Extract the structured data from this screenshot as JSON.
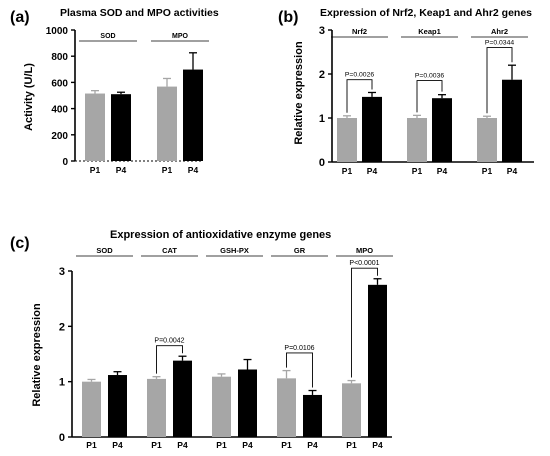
{
  "colors": {
    "p1": "#a6a6a6",
    "p4": "#000000",
    "axis": "#000000"
  },
  "chart_data": [
    {
      "panel_label": "(a)",
      "type": "bar",
      "title": "Plasma SOD and MPO activities",
      "ylabel": "Activity (U/L)",
      "xlabel": "",
      "ylim": [
        0,
        1000
      ],
      "yticks": [
        "0",
        "200",
        "400",
        "600",
        "800",
        "1000"
      ],
      "groups": [
        "SOD",
        "MPO"
      ],
      "categories": [
        "P1",
        "P4"
      ],
      "series": [
        {
          "name": "SOD",
          "values": [
            515,
            510
          ],
          "errors": [
            22,
            15
          ]
        },
        {
          "name": "MPO",
          "values": [
            568,
            698
          ],
          "errors": [
            62,
            128
          ]
        }
      ],
      "annotations": [],
      "baseline_dashed": true,
      "grid": false,
      "legend": "none"
    },
    {
      "panel_label": "(b)",
      "type": "bar",
      "title": "Expression of Nrf2, Keap1 and Ahr2 genes",
      "ylabel": "Relative expression",
      "xlabel": "",
      "ylim": [
        0,
        3
      ],
      "yticks": [
        "0",
        "1",
        "2",
        "3"
      ],
      "groups": [
        "Nrf2",
        "Keap1",
        "Ahr2"
      ],
      "categories": [
        "P1",
        "P4"
      ],
      "series": [
        {
          "name": "Nrf2",
          "values": [
            1.0,
            1.48
          ],
          "errors": [
            0.05,
            0.1
          ]
        },
        {
          "name": "Keap1",
          "values": [
            1.0,
            1.45
          ],
          "errors": [
            0.06,
            0.08
          ]
        },
        {
          "name": "Ahr2",
          "values": [
            1.0,
            1.87
          ],
          "errors": [
            0.04,
            0.33
          ]
        }
      ],
      "annotations": [
        {
          "group": "Nrf2",
          "text": "P=0.0026",
          "y": 1.87
        },
        {
          "group": "Keap1",
          "text": "P=0.0036",
          "y": 1.85
        },
        {
          "group": "Ahr2",
          "text": "P=0.0344",
          "y": 2.6
        }
      ],
      "baseline_dashed": false,
      "grid": false,
      "legend": "none"
    },
    {
      "panel_label": "(c)",
      "type": "bar",
      "title": "Expression of antioxidative enzyme genes",
      "ylabel": "Relative expression",
      "xlabel": "",
      "ylim": [
        0,
        3
      ],
      "yticks": [
        "0",
        "1",
        "2",
        "3"
      ],
      "groups": [
        "SOD",
        "CAT",
        "GSH-PX",
        "GR",
        "MPO"
      ],
      "categories": [
        "P1",
        "P4"
      ],
      "series": [
        {
          "name": "SOD",
          "values": [
            1.0,
            1.12
          ],
          "errors": [
            0.04,
            0.06
          ]
        },
        {
          "name": "CAT",
          "values": [
            1.05,
            1.38
          ],
          "errors": [
            0.04,
            0.08
          ]
        },
        {
          "name": "GSH-PX",
          "values": [
            1.09,
            1.22
          ],
          "errors": [
            0.05,
            0.18
          ]
        },
        {
          "name": "GR",
          "values": [
            1.06,
            0.76
          ],
          "errors": [
            0.14,
            0.08
          ]
        },
        {
          "name": "MPO",
          "values": [
            0.97,
            2.75
          ],
          "errors": [
            0.05,
            0.11
          ]
        }
      ],
      "annotations": [
        {
          "group": "CAT",
          "text": "P=0.0042",
          "y": 1.65
        },
        {
          "group": "GR",
          "text": "P=0.0106",
          "y": 1.52
        },
        {
          "group": "MPO",
          "text": "P<0.0001",
          "y": 3.05
        }
      ],
      "baseline_dashed": false,
      "grid": false,
      "legend": "none"
    }
  ]
}
